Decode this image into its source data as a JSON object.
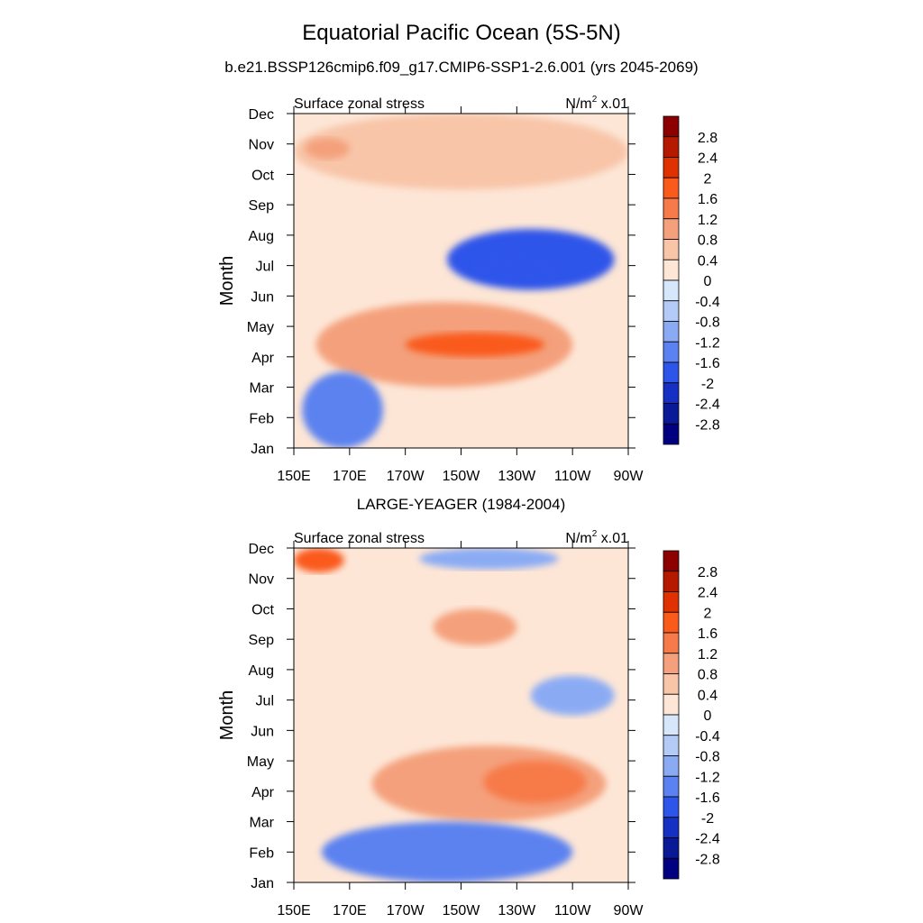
{
  "header": {
    "title": "Equatorial Pacific Ocean (5S-5N)",
    "subtitle": "b.e21.BSSP126cmip6.f09_g17.CMIP6-SSP1-2.6.001 (yrs 2045-2069)"
  },
  "chart_data": [
    {
      "type": "heatmap",
      "panel_title": "",
      "left_label": "Surface zonal stress",
      "units_base": "N/m",
      "units_exp": "2",
      "units_suffix": " x.01",
      "ylabel": "Month",
      "x_ticks": [
        "150E",
        "170E",
        "170W",
        "150W",
        "130W",
        "110W",
        "90W"
      ],
      "x_range": [
        "150E",
        "90W"
      ],
      "y_ticks": [
        "Jan",
        "Feb",
        "Mar",
        "Apr",
        "May",
        "Jun",
        "Jul",
        "Aug",
        "Sep",
        "Oct",
        "Nov",
        "Dec"
      ],
      "colorbar_labels": [
        "2.8",
        "2.4",
        "2",
        "1.6",
        "1.2",
        "0.8",
        "0.4",
        "0",
        "-0.4",
        "-0.8",
        "-1.2",
        "-1.6",
        "-2",
        "-2.4",
        "-2.8"
      ],
      "level_colors": [
        "#8c0000",
        "#b51a00",
        "#e03200",
        "#fa5a1a",
        "#f77a4a",
        "#f4a07c",
        "#f8c5a8",
        "#fde6d6",
        "#d6e7fb",
        "#b4cbf7",
        "#8aabf4",
        "#5b82f0",
        "#2d55ea",
        "#1530c2",
        "#0a1a96",
        "#000080"
      ],
      "features": [
        {
          "label": "positive band along diagonal",
          "lon": [
            158,
            250
          ],
          "month": [
            3.0,
            5.8
          ],
          "value": 1.0
        },
        {
          "label": "positive maximum",
          "lon": [
            190,
            240
          ],
          "month": [
            4.0,
            4.8
          ],
          "value": 1.8
        },
        {
          "label": "negative core",
          "lon": [
            205,
            265
          ],
          "month": [
            6.2,
            8.2
          ],
          "value": -1.7
        },
        {
          "label": "negative minimum",
          "lon": [
            215,
            245
          ],
          "month": [
            6.5,
            7.3
          ],
          "value": -2.0
        },
        {
          "label": "western negative patch",
          "lon": [
            153,
            182
          ],
          "month": [
            1.0,
            3.5
          ],
          "value": -1.3
        },
        {
          "label": "late-year positive",
          "lon": [
            150,
            270
          ],
          "month": [
            9.5,
            12.0
          ],
          "value": 0.5
        },
        {
          "label": "Nov western patch",
          "lon": [
            154,
            170
          ],
          "month": [
            10.5,
            11.2
          ],
          "value": 1.0
        }
      ]
    },
    {
      "type": "heatmap",
      "panel_title": "LARGE-YEAGER (1984-2004)",
      "left_label": "Surface zonal stress",
      "units_base": "N/m",
      "units_exp": "2",
      "units_suffix": " x.01",
      "ylabel": "Month",
      "x_ticks": [
        "150E",
        "170E",
        "170W",
        "150W",
        "130W",
        "110W",
        "90W"
      ],
      "x_range": [
        "150E",
        "90W"
      ],
      "y_ticks": [
        "Jan",
        "Feb",
        "Mar",
        "Apr",
        "May",
        "Jun",
        "Jul",
        "Aug",
        "Sep",
        "Oct",
        "Nov",
        "Dec"
      ],
      "colorbar_labels": [
        "2.8",
        "2.4",
        "2",
        "1.6",
        "1.2",
        "0.8",
        "0.4",
        "0",
        "-0.4",
        "-0.8",
        "-1.2",
        "-1.6",
        "-2",
        "-2.4",
        "-2.8"
      ],
      "level_colors": [
        "#8c0000",
        "#b51a00",
        "#e03200",
        "#fa5a1a",
        "#f77a4a",
        "#f4a07c",
        "#f8c5a8",
        "#fde6d6",
        "#d6e7fb",
        "#b4cbf7",
        "#8aabf4",
        "#5b82f0",
        "#2d55ea",
        "#1530c2",
        "#0a1a96",
        "#000080"
      ],
      "features": [
        {
          "label": "positive band",
          "lon": [
            178,
            262
          ],
          "month": [
            3.0,
            5.5
          ],
          "value": 1.0
        },
        {
          "label": "positive maximum",
          "lon": [
            218,
            255
          ],
          "month": [
            3.6,
            5.0
          ],
          "value": 1.5
        },
        {
          "label": "Dec western maximum",
          "lon": [
            150,
            168
          ],
          "month": [
            11.2,
            12.0
          ],
          "value": 1.8
        },
        {
          "label": "Oct-Sep positive",
          "lon": [
            200,
            230
          ],
          "month": [
            8.8,
            10.0
          ],
          "value": 0.8
        },
        {
          "label": "Jan-Mar negative",
          "lon": [
            160,
            250
          ],
          "month": [
            1.0,
            3.0
          ],
          "value": -1.2
        },
        {
          "label": "Jul-Aug negative",
          "lon": [
            235,
            265
          ],
          "month": [
            6.5,
            7.8
          ],
          "value": -1.0
        },
        {
          "label": "Dec negative",
          "lon": [
            195,
            245
          ],
          "month": [
            11.3,
            12.0
          ],
          "value": -1.0
        }
      ]
    }
  ]
}
